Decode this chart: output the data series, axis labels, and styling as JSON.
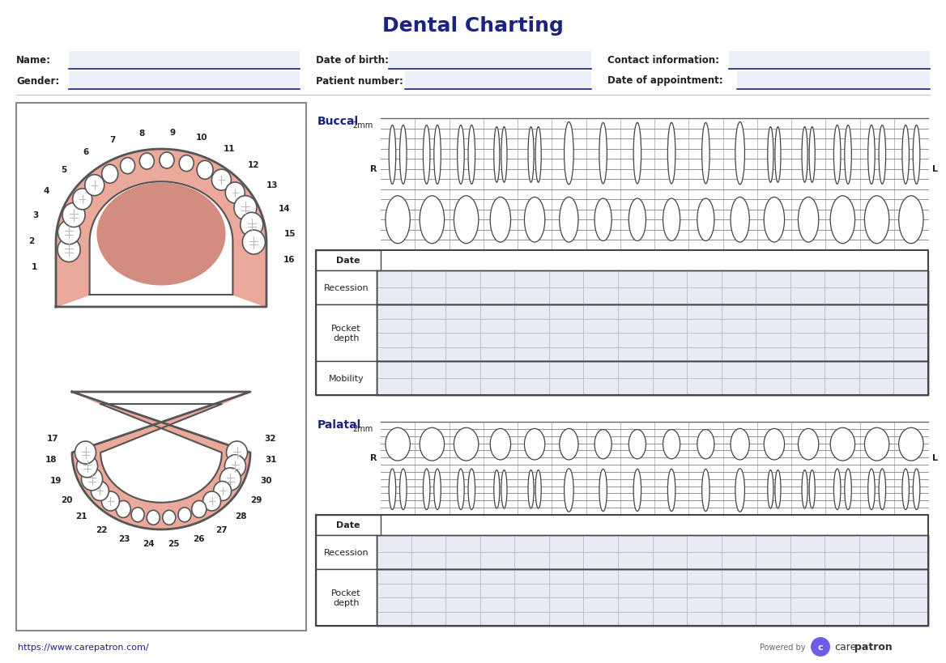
{
  "title": "Dental Charting",
  "title_color": "#1a237e",
  "title_fontsize": 18,
  "bg_color": "#ffffff",
  "field_bg_color": "#eef0f8",
  "field_line_color": "#1a237e",
  "label_color": "#222222",
  "label_fontsize": 8.5,
  "section_label_color": "#1a237e",
  "gum_fill": "#e8a090",
  "gum_edge": "#555555",
  "palate_fill": "#c87060",
  "grid_bg": "#e8eaf6",
  "grid_line_color": "#aaaacc",
  "table_border": "#444444",
  "upper_tooth_numbers": [
    1,
    2,
    3,
    4,
    5,
    6,
    7,
    8,
    9,
    10,
    11,
    12,
    13,
    14,
    15,
    16
  ],
  "lower_tooth_numbers": [
    32,
    31,
    30,
    29,
    28,
    27,
    26,
    25,
    24,
    23,
    22,
    21,
    20,
    19,
    18,
    17
  ],
  "buccal_label": "Buccal",
  "palatal_label": "Palatal",
  "recession_label": "Recession",
  "pocket_depth_label": "Pocket\ndepth",
  "mobility_label": "Mobility",
  "date_label": "Date",
  "mm_label": "2mm",
  "r_label": "R",
  "l_label": "L",
  "footer_url": "https://www.carepatron.com/",
  "footer_powered": "Powered by",
  "footer_brand": "carepatron",
  "logo_color": "#6c5ce7"
}
